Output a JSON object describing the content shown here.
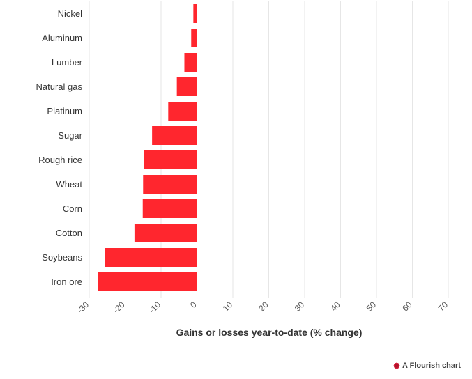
{
  "chart_data": {
    "type": "bar",
    "orientation": "horizontal",
    "categories": [
      "Nickel",
      "Aluminum",
      "Lumber",
      "Natural gas",
      "Platinum",
      "Sugar",
      "Rough rice",
      "Wheat",
      "Corn",
      "Cotton",
      "Soybeans",
      "Iron ore"
    ],
    "values": [
      -1.0,
      -1.6,
      -3.5,
      -5.6,
      -8.0,
      -12.5,
      -14.7,
      -15.0,
      -15.1,
      -17.4,
      -25.7,
      -27.6
    ],
    "xlabel": "Gains or losses year-to-date (% change)",
    "xlim": [
      -30,
      70
    ],
    "xticks": [
      "-30",
      "-20",
      "-10",
      "0",
      "10",
      "20",
      "30",
      "40",
      "50",
      "60",
      "70"
    ],
    "bar_color": "#ff262e",
    "grid": true
  },
  "credit": {
    "text": "A Flourish chart",
    "icon": "flourish-logo-icon"
  }
}
